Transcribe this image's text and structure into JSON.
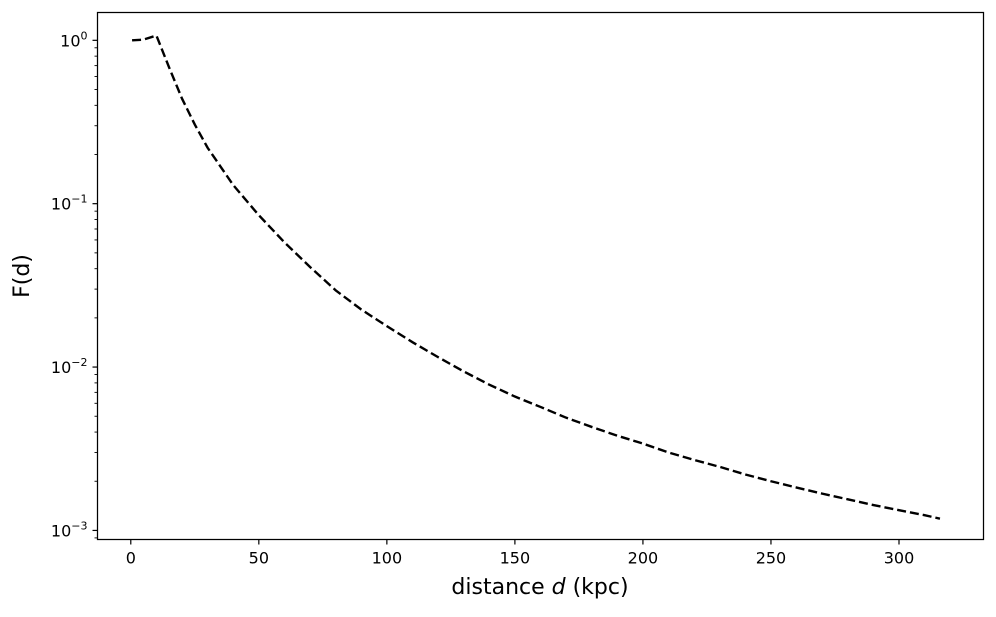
{
  "chart_data": {
    "type": "line",
    "title": "",
    "xlabel": {
      "prefix": "distance ",
      "var": "d",
      "suffix": " (kpc)"
    },
    "ylabel": "F(d)",
    "xlim": [
      -13,
      333
    ],
    "ylim": [
      0.00088,
      1.48
    ],
    "yscale": "log",
    "grid": false,
    "legend": "none",
    "line_color": "#000000",
    "line_style": "dashed",
    "x_ticks": [
      {
        "value": 0,
        "label": "0"
      },
      {
        "value": 50,
        "label": "50"
      },
      {
        "value": 100,
        "label": "100"
      },
      {
        "value": 150,
        "label": "150"
      },
      {
        "value": 200,
        "label": "200"
      },
      {
        "value": 250,
        "label": "250"
      },
      {
        "value": 300,
        "label": "300"
      }
    ],
    "y_ticks": [
      {
        "value": 1,
        "base": "10",
        "exp": "0"
      },
      {
        "value": 0.1,
        "base": "10",
        "exp": "−1"
      },
      {
        "value": 0.01,
        "base": "10",
        "exp": "−2"
      },
      {
        "value": 0.001,
        "base": "10",
        "exp": "−3"
      }
    ],
    "series": [
      {
        "x": [
          0.5,
          5,
          10,
          15,
          20,
          25,
          30,
          40,
          50,
          60,
          70,
          80,
          90,
          100,
          110,
          120,
          130,
          140,
          150,
          160,
          170,
          180,
          190,
          200,
          210,
          220,
          230,
          240,
          250,
          260,
          270,
          280,
          290,
          300,
          310,
          316
        ],
        "y": [
          1.0,
          1.01,
          1.07,
          0.68,
          0.44,
          0.305,
          0.22,
          0.13,
          0.085,
          0.058,
          0.041,
          0.0295,
          0.0225,
          0.0178,
          0.0142,
          0.0115,
          0.0094,
          0.0078,
          0.0066,
          0.0057,
          0.0049,
          0.0043,
          0.0038,
          0.0034,
          0.003,
          0.0027,
          0.00245,
          0.0022,
          0.002,
          0.00183,
          0.00168,
          0.00155,
          0.00143,
          0.00133,
          0.00124,
          0.00118
        ]
      }
    ]
  }
}
